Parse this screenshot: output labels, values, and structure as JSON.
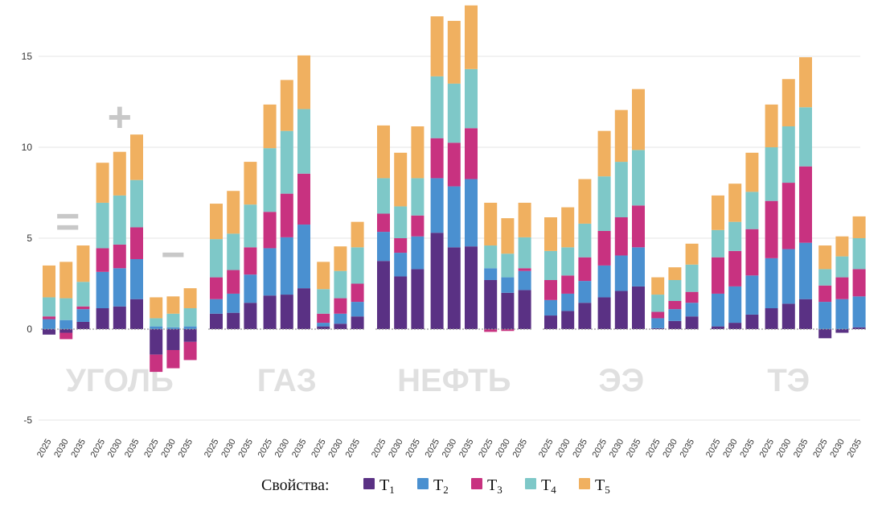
{
  "chart_data": {
    "type": "bar",
    "stacked": true,
    "ylim": [
      -5,
      17.6
    ],
    "yticks": [
      -5,
      0,
      5,
      10,
      15
    ],
    "grid": true,
    "legend": {
      "title": "Свойства:",
      "placement": "bottom",
      "entries": [
        {
          "base": "T",
          "sub": "1"
        },
        {
          "base": "T",
          "sub": "2"
        },
        {
          "base": "T",
          "sub": "3"
        },
        {
          "base": "T",
          "sub": "4"
        },
        {
          "base": "T",
          "sub": "5"
        }
      ]
    },
    "series_colors": [
      "#5a3184",
      "#4a90d0",
      "#c83280",
      "#7ec8c8",
      "#f0b060"
    ],
    "groups": [
      {
        "label": "УГОЛЬ",
        "subgroups": [
          {
            "sign": "=",
            "bars": [
              {
                "x": "2025",
                "values": [
                  -0.3,
                  0.55,
                  0.15,
                  1.05,
                  1.75
                ]
              },
              {
                "x": "2030",
                "values": [
                  -0.2,
                  0.5,
                  -0.35,
                  1.2,
                  2.0
                ]
              },
              {
                "x": "2035",
                "values": [
                  0.4,
                  0.7,
                  0.15,
                  1.35,
                  2.0
                ]
              }
            ]
          },
          {
            "sign": "+",
            "bars": [
              {
                "x": "2025",
                "values": [
                  1.15,
                  2.0,
                  1.3,
                  2.5,
                  2.2
                ]
              },
              {
                "x": "2030",
                "values": [
                  1.25,
                  2.1,
                  1.3,
                  2.7,
                  2.4
                ]
              },
              {
                "x": "2035",
                "values": [
                  1.65,
                  2.2,
                  1.75,
                  2.6,
                  2.5
                ]
              }
            ]
          },
          {
            "sign": "−",
            "bars": [
              {
                "x": "2025",
                "values": [
                  -1.4,
                  0.15,
                  -0.95,
                  0.45,
                  1.15
                ]
              },
              {
                "x": "2030",
                "values": [
                  -1.15,
                  0.1,
                  -1.0,
                  0.75,
                  0.95
                ]
              },
              {
                "x": "2035",
                "values": [
                  -0.7,
                  0.15,
                  -1.0,
                  1.0,
                  1.1
                ]
              }
            ]
          }
        ]
      },
      {
        "label": "ГАЗ",
        "subgroups": [
          {
            "bars": [
              {
                "x": "2025",
                "values": [
                  0.85,
                  0.8,
                  1.2,
                  2.1,
                  1.95
                ]
              },
              {
                "x": "2030",
                "values": [
                  0.9,
                  1.05,
                  1.3,
                  2.0,
                  2.35
                ]
              },
              {
                "x": "2035",
                "values": [
                  1.45,
                  1.55,
                  1.5,
                  2.35,
                  2.35
                ]
              }
            ]
          },
          {
            "bars": [
              {
                "x": "2025",
                "values": [
                  1.85,
                  2.6,
                  2.0,
                  3.5,
                  2.4
                ]
              },
              {
                "x": "2030",
                "values": [
                  1.9,
                  3.15,
                  2.4,
                  3.45,
                  2.8
                ]
              },
              {
                "x": "2035",
                "values": [
                  2.25,
                  3.5,
                  2.8,
                  3.55,
                  2.95
                ]
              }
            ]
          },
          {
            "bars": [
              {
                "x": "2025",
                "values": [
                  0.15,
                  0.2,
                  0.5,
                  1.35,
                  1.5
                ]
              },
              {
                "x": "2030",
                "values": [
                  0.3,
                  0.55,
                  0.85,
                  1.5,
                  1.35
                ]
              },
              {
                "x": "2035",
                "values": [
                  0.7,
                  0.8,
                  1.0,
                  2.0,
                  1.4
                ]
              }
            ]
          }
        ]
      },
      {
        "label": "НЕФТЬ",
        "subgroups": [
          {
            "bars": [
              {
                "x": "2025",
                "values": [
                  3.75,
                  1.6,
                  1.0,
                  1.95,
                  2.9
                ]
              },
              {
                "x": "2030",
                "values": [
                  2.9,
                  1.3,
                  0.8,
                  1.75,
                  2.95
                ]
              },
              {
                "x": "2035",
                "values": [
                  3.3,
                  1.8,
                  1.15,
                  2.05,
                  2.85
                ]
              }
            ]
          },
          {
            "bars": [
              {
                "x": "2025",
                "values": [
                  5.3,
                  3.0,
                  2.2,
                  3.4,
                  3.3
                ]
              },
              {
                "x": "2030",
                "values": [
                  4.5,
                  3.35,
                  2.4,
                  3.25,
                  3.45
                ]
              },
              {
                "x": "2035",
                "values": [
                  4.55,
                  3.7,
                  2.8,
                  3.25,
                  3.5
                ]
              }
            ]
          },
          {
            "bars": [
              {
                "x": "2025",
                "values": [
                  2.7,
                  0.65,
                  -0.15,
                  1.25,
                  2.35
                ]
              },
              {
                "x": "2030",
                "values": [
                  2.0,
                  0.85,
                  -0.1,
                  1.3,
                  1.95
                ]
              },
              {
                "x": "2035",
                "values": [
                  2.15,
                  1.05,
                  0.15,
                  1.7,
                  1.9
                ]
              }
            ]
          }
        ]
      },
      {
        "label": "ЭЭ",
        "subgroups": [
          {
            "bars": [
              {
                "x": "2025",
                "values": [
                  0.75,
                  0.85,
                  1.1,
                  1.6,
                  1.85
                ]
              },
              {
                "x": "2030",
                "values": [
                  1.0,
                  0.95,
                  1.0,
                  1.55,
                  2.2
                ]
              },
              {
                "x": "2035",
                "values": [
                  1.45,
                  1.2,
                  1.3,
                  1.85,
                  2.45
                ]
              }
            ]
          },
          {
            "bars": [
              {
                "x": "2025",
                "values": [
                  1.75,
                  1.75,
                  1.9,
                  3.0,
                  2.5
                ]
              },
              {
                "x": "2030",
                "values": [
                  2.1,
                  1.95,
                  2.1,
                  3.05,
                  2.85
                ]
              },
              {
                "x": "2035",
                "values": [
                  2.35,
                  2.15,
                  2.3,
                  3.05,
                  3.35
                ]
              }
            ]
          },
          {
            "bars": [
              {
                "x": "2025",
                "values": [
                  0.05,
                  0.55,
                  0.35,
                  0.95,
                  0.95
                ]
              },
              {
                "x": "2030",
                "values": [
                  0.45,
                  0.65,
                  0.45,
                  1.15,
                  0.7
                ]
              },
              {
                "x": "2035",
                "values": [
                  0.7,
                  0.75,
                  0.6,
                  1.5,
                  1.15
                ]
              }
            ]
          }
        ]
      },
      {
        "label": "ТЭ",
        "subgroups": [
          {
            "bars": [
              {
                "x": "2025",
                "values": [
                  0.15,
                  1.8,
                  2.0,
                  1.5,
                  1.9
                ]
              },
              {
                "x": "2030",
                "values": [
                  0.35,
                  2.0,
                  1.95,
                  1.6,
                  2.1
                ]
              },
              {
                "x": "2035",
                "values": [
                  0.8,
                  2.15,
                  2.55,
                  2.05,
                  2.15
                ]
              }
            ]
          },
          {
            "bars": [
              {
                "x": "2025",
                "values": [
                  1.15,
                  2.75,
                  3.15,
                  2.95,
                  2.35
                ]
              },
              {
                "x": "2030",
                "values": [
                  1.4,
                  3.0,
                  3.65,
                  3.1,
                  2.6
                ]
              },
              {
                "x": "2035",
                "values": [
                  1.65,
                  3.1,
                  4.2,
                  3.25,
                  2.75
                ]
              }
            ]
          },
          {
            "bars": [
              {
                "x": "2025",
                "values": [
                  -0.5,
                  1.5,
                  0.9,
                  0.9,
                  1.3
                ]
              },
              {
                "x": "2030",
                "values": [
                  -0.2,
                  1.65,
                  1.2,
                  1.15,
                  1.1
                ]
              },
              {
                "x": "2035",
                "values": [
                  0.1,
                  1.7,
                  1.5,
                  1.7,
                  1.2
                ]
              }
            ]
          }
        ]
      }
    ]
  }
}
